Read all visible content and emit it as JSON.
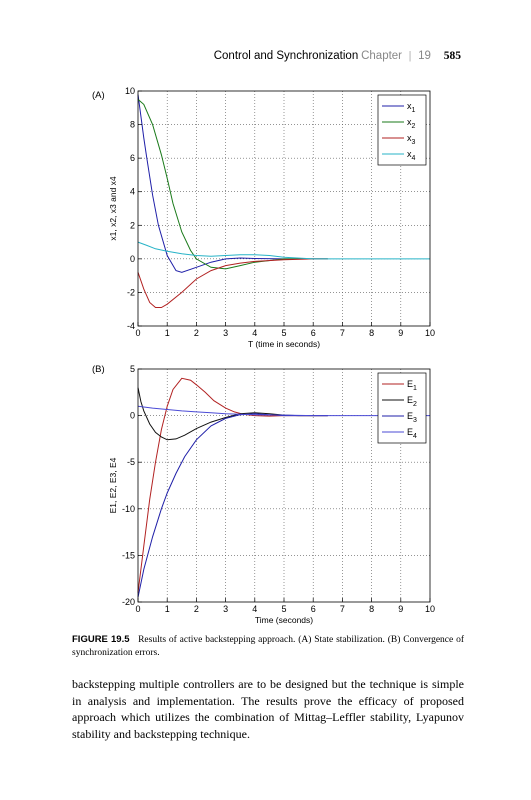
{
  "header": {
    "title": "Control and Synchronization",
    "chapter": "Chapter",
    "separator": "|",
    "chapter_number": "19",
    "page_number": "585"
  },
  "caption": {
    "label": "FIGURE 19.5",
    "text": "Results of active backstepping approach. (A) State stabilization. (B) Convergence of synchronization errors."
  },
  "body_text": "backstepping multiple controllers are to be designed but the technique is simple in analysis and implementation. The results prove the efficacy of proposed approach which utilizes the combination of Mittag–Leffler stability, Lyapunov stability and backstepping technique.",
  "chart_data": [
    {
      "panel_label": "(A)",
      "type": "line",
      "xlabel": "T (time in seconds)",
      "ylabel": "x1, x2, x3 and x4",
      "xlim": [
        0,
        10
      ],
      "ylim": [
        -4,
        10
      ],
      "xticks": [
        0,
        1,
        2,
        3,
        4,
        5,
        6,
        7,
        8,
        9,
        10
      ],
      "yticks": [
        -4,
        -2,
        0,
        2,
        4,
        6,
        8,
        10
      ],
      "grid": true,
      "legend": "top-right",
      "series": [
        {
          "name": "x",
          "sub": "1",
          "color": "#1f1fa8",
          "x": [
            0,
            0.1,
            0.2,
            0.3,
            0.5,
            0.7,
            1.0,
            1.3,
            1.5,
            2.0,
            2.5,
            3.0,
            3.5,
            4.0,
            5.0,
            6.0,
            6.5
          ],
          "y": [
            9.8,
            8.5,
            7.2,
            6.0,
            3.8,
            2.0,
            0.2,
            -0.7,
            -0.8,
            -0.5,
            -0.2,
            0.0,
            0.05,
            0.02,
            0.0,
            0.0,
            0.0
          ]
        },
        {
          "name": "x",
          "sub": "2",
          "color": "#1a7a1a",
          "x": [
            0,
            0.2,
            0.5,
            0.8,
            1.0,
            1.2,
            1.5,
            1.8,
            2.0,
            2.5,
            3.0,
            3.5,
            4.0,
            5.0,
            6.0,
            6.5
          ],
          "y": [
            9.5,
            9.2,
            8.0,
            6.2,
            4.8,
            3.3,
            1.6,
            0.5,
            0.0,
            -0.5,
            -0.6,
            -0.4,
            -0.2,
            0.0,
            0.0,
            0.0
          ]
        },
        {
          "name": "x",
          "sub": "3",
          "color": "#b22222",
          "x": [
            0,
            0.2,
            0.4,
            0.6,
            0.8,
            1.0,
            1.5,
            2.0,
            2.5,
            3.0,
            3.5,
            4.0,
            5.0,
            6.0,
            6.5
          ],
          "y": [
            -0.8,
            -1.8,
            -2.6,
            -2.9,
            -2.9,
            -2.7,
            -2.0,
            -1.2,
            -0.7,
            -0.4,
            -0.25,
            -0.15,
            -0.05,
            0.0,
            0.0
          ]
        },
        {
          "name": "x",
          "sub": "4",
          "color": "#27b3c7",
          "x": [
            0,
            0.3,
            0.6,
            1.0,
            1.5,
            2.0,
            2.5,
            3.0,
            3.5,
            4.0,
            4.5,
            5.0,
            6.0,
            7.0,
            8.0,
            9.0,
            10.0
          ],
          "y": [
            1.0,
            0.8,
            0.6,
            0.45,
            0.3,
            0.2,
            0.15,
            0.2,
            0.25,
            0.25,
            0.2,
            0.1,
            0.0,
            0.0,
            0.0,
            0.0,
            0.0
          ]
        }
      ]
    },
    {
      "panel_label": "(B)",
      "type": "line",
      "xlabel": "Time (seconds)",
      "ylabel": "E1, E2, E3, E4",
      "xlim": [
        0,
        10
      ],
      "ylim": [
        -20,
        5
      ],
      "xticks": [
        0,
        1,
        2,
        3,
        4,
        5,
        6,
        7,
        8,
        9,
        10
      ],
      "yticks": [
        -20,
        -15,
        -10,
        -5,
        0,
        5
      ],
      "grid": true,
      "legend": "top-right",
      "series": [
        {
          "name": "E",
          "sub": "1",
          "color": "#b22222",
          "x": [
            0,
            0.2,
            0.4,
            0.6,
            0.8,
            1.0,
            1.2,
            1.5,
            1.8,
            2.0,
            2.3,
            2.6,
            3.0,
            3.3,
            3.6,
            4.0,
            4.5,
            5.0,
            5.5,
            6.0,
            6.5
          ],
          "y": [
            -19,
            -14,
            -9,
            -5,
            -1.5,
            1.0,
            2.8,
            4.0,
            3.8,
            3.3,
            2.5,
            1.6,
            0.8,
            0.4,
            0.15,
            0.0,
            -0.05,
            0.0,
            0.0,
            0.0,
            0.0
          ]
        },
        {
          "name": "E",
          "sub": "2",
          "color": "#111111",
          "x": [
            0,
            0.1,
            0.2,
            0.4,
            0.6,
            0.8,
            1.0,
            1.3,
            1.6,
            2.0,
            2.5,
            3.0,
            3.5,
            4.0,
            4.5,
            5.0,
            5.5,
            6.0,
            6.5
          ],
          "y": [
            3.0,
            1.5,
            0.5,
            -0.9,
            -1.8,
            -2.3,
            -2.6,
            -2.5,
            -2.1,
            -1.4,
            -0.7,
            -0.2,
            0.2,
            0.3,
            0.2,
            0.05,
            0.0,
            0.0,
            0.0
          ]
        },
        {
          "name": "E",
          "sub": "3",
          "color": "#1f1fa8",
          "x": [
            0,
            0.2,
            0.5,
            0.8,
            1.0,
            1.3,
            1.6,
            2.0,
            2.5,
            3.0,
            3.5,
            4.0,
            4.5,
            5.0,
            5.5,
            6.0,
            6.5
          ],
          "y": [
            -19.5,
            -16.5,
            -13,
            -10,
            -8.3,
            -6.2,
            -4.4,
            -2.6,
            -1.1,
            -0.3,
            0.1,
            0.2,
            0.1,
            0.0,
            0.0,
            0.0,
            0.0
          ]
        },
        {
          "name": "E",
          "sub": "4",
          "color": "#4b4bd6",
          "x": [
            0,
            0.5,
            1.0,
            1.5,
            2.0,
            2.5,
            3.0,
            3.5,
            4.0,
            5.0,
            6.0,
            7.0,
            8.0,
            9.0,
            10.0
          ],
          "y": [
            1.0,
            0.8,
            0.65,
            0.5,
            0.4,
            0.3,
            0.2,
            0.15,
            0.1,
            0.05,
            0.0,
            0.0,
            0.0,
            0.0,
            0.0
          ]
        }
      ]
    }
  ]
}
